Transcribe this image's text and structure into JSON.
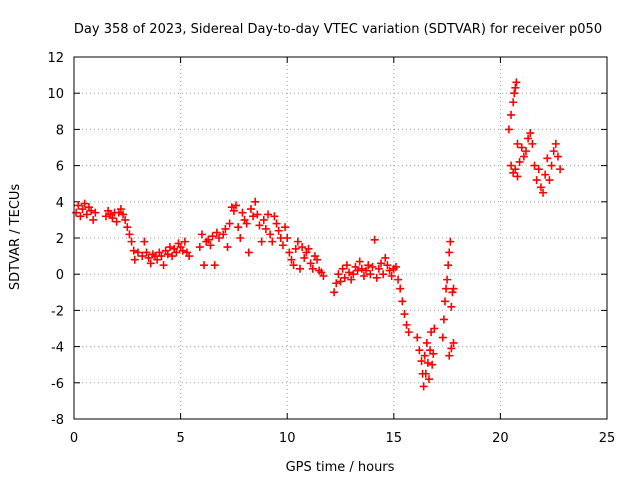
{
  "chart_data": {
    "type": "scatter",
    "title": "Day 358 of 2023, Sidereal Day-to-day VTEC variation (SDTVAR) for receiver p050",
    "xlabel": "GPS time / hours",
    "ylabel": "SDTVAR / TECUs",
    "xlim": [
      0,
      25
    ],
    "ylim": [
      -8,
      12
    ],
    "xticks": [
      0,
      5,
      10,
      15,
      20,
      25
    ],
    "yticks": [
      -8,
      -6,
      -4,
      -2,
      0,
      2,
      4,
      6,
      8,
      10,
      12
    ],
    "grid": true,
    "marker": "+",
    "series": [
      {
        "name": "SDTVAR",
        "color": "#ff0000",
        "points": [
          [
            0.1,
            3.4
          ],
          [
            0.2,
            3.8
          ],
          [
            0.3,
            3.2
          ],
          [
            0.4,
            3.6
          ],
          [
            0.5,
            3.9
          ],
          [
            0.6,
            3.3
          ],
          [
            0.7,
            3.7
          ],
          [
            0.8,
            3.5
          ],
          [
            0.9,
            3.0
          ],
          [
            1.0,
            3.4
          ],
          [
            1.5,
            3.2
          ],
          [
            1.6,
            3.5
          ],
          [
            1.7,
            3.3
          ],
          [
            1.8,
            3.1
          ],
          [
            1.9,
            3.4
          ],
          [
            2.0,
            2.9
          ],
          [
            2.1,
            3.4
          ],
          [
            2.2,
            3.6
          ],
          [
            2.3,
            3.3
          ],
          [
            2.4,
            3.0
          ],
          [
            2.5,
            2.6
          ],
          [
            2.6,
            2.2
          ],
          [
            2.7,
            1.8
          ],
          [
            2.8,
            1.3
          ],
          [
            2.85,
            0.8
          ],
          [
            3.0,
            1.2
          ],
          [
            3.2,
            1.0
          ],
          [
            3.3,
            1.8
          ],
          [
            3.4,
            1.2
          ],
          [
            3.5,
            0.9
          ],
          [
            3.6,
            0.6
          ],
          [
            3.7,
            1.1
          ],
          [
            3.8,
            1.0
          ],
          [
            3.9,
            0.8
          ],
          [
            4.0,
            1.2
          ],
          [
            4.1,
            1.0
          ],
          [
            4.2,
            0.5
          ],
          [
            4.3,
            1.3
          ],
          [
            4.4,
            1.1
          ],
          [
            4.5,
            1.5
          ],
          [
            4.6,
            1.0
          ],
          [
            4.7,
            1.4
          ],
          [
            4.8,
            1.2
          ],
          [
            4.9,
            1.7
          ],
          [
            5.0,
            1.5
          ],
          [
            5.1,
            1.3
          ],
          [
            5.2,
            1.8
          ],
          [
            5.3,
            1.2
          ],
          [
            5.4,
            1.0
          ],
          [
            5.9,
            1.5
          ],
          [
            6.0,
            2.2
          ],
          [
            6.1,
            0.5
          ],
          [
            6.2,
            1.8
          ],
          [
            6.3,
            1.9
          ],
          [
            6.4,
            1.6
          ],
          [
            6.5,
            2.1
          ],
          [
            6.6,
            0.5
          ],
          [
            6.7,
            2.3
          ],
          [
            6.8,
            2.0
          ],
          [
            7.0,
            2.2
          ],
          [
            7.1,
            2.5
          ],
          [
            7.2,
            1.5
          ],
          [
            7.3,
            2.8
          ],
          [
            7.4,
            3.7
          ],
          [
            7.5,
            3.5
          ],
          [
            7.6,
            3.8
          ],
          [
            7.7,
            2.6
          ],
          [
            7.8,
            2.0
          ],
          [
            7.9,
            3.4
          ],
          [
            8.0,
            3.0
          ],
          [
            8.1,
            2.8
          ],
          [
            8.2,
            1.2
          ],
          [
            8.3,
            3.6
          ],
          [
            8.4,
            3.2
          ],
          [
            8.5,
            4.0
          ],
          [
            8.6,
            3.3
          ],
          [
            8.7,
            2.7
          ],
          [
            8.8,
            1.8
          ],
          [
            8.9,
            3.0
          ],
          [
            9.0,
            2.5
          ],
          [
            9.1,
            3.3
          ],
          [
            9.2,
            2.2
          ],
          [
            9.3,
            1.8
          ],
          [
            9.4,
            3.2
          ],
          [
            9.5,
            2.8
          ],
          [
            9.6,
            2.4
          ],
          [
            9.7,
            2.0
          ],
          [
            9.8,
            1.6
          ],
          [
            9.9,
            2.6
          ],
          [
            10.0,
            2.0
          ],
          [
            10.1,
            1.2
          ],
          [
            10.2,
            0.8
          ],
          [
            10.3,
            0.5
          ],
          [
            10.4,
            1.4
          ],
          [
            10.5,
            1.8
          ],
          [
            10.6,
            0.3
          ],
          [
            10.7,
            1.5
          ],
          [
            10.8,
            0.9
          ],
          [
            10.9,
            1.2
          ],
          [
            11.0,
            1.4
          ],
          [
            11.1,
            0.6
          ],
          [
            11.2,
            0.3
          ],
          [
            11.3,
            1.0
          ],
          [
            11.4,
            0.8
          ],
          [
            11.5,
            0.2
          ],
          [
            11.6,
            0.1
          ],
          [
            11.7,
            -0.1
          ],
          [
            12.2,
            -1.0
          ],
          [
            12.3,
            -0.5
          ],
          [
            12.4,
            0.0
          ],
          [
            12.5,
            -0.4
          ],
          [
            12.6,
            0.3
          ],
          [
            12.7,
            -0.2
          ],
          [
            12.8,
            0.5
          ],
          [
            12.9,
            0.1
          ],
          [
            13.0,
            -0.3
          ],
          [
            13.1,
            0.0
          ],
          [
            13.2,
            0.4
          ],
          [
            13.3,
            0.2
          ],
          [
            13.4,
            0.7
          ],
          [
            13.5,
            0.3
          ],
          [
            13.6,
            -0.1
          ],
          [
            13.7,
            0.2
          ],
          [
            13.8,
            0.5
          ],
          [
            13.9,
            0.0
          ],
          [
            14.0,
            0.4
          ],
          [
            14.1,
            1.9
          ],
          [
            14.2,
            -0.2
          ],
          [
            14.3,
            0.3
          ],
          [
            14.4,
            0.6
          ],
          [
            14.5,
            0.0
          ],
          [
            14.6,
            0.9
          ],
          [
            14.7,
            0.5
          ],
          [
            14.8,
            0.2
          ],
          [
            14.9,
            -0.1
          ],
          [
            15.0,
            0.3
          ],
          [
            15.1,
            0.4
          ],
          [
            15.2,
            -0.3
          ],
          [
            15.3,
            -0.8
          ],
          [
            15.4,
            -1.5
          ],
          [
            15.5,
            -2.2
          ],
          [
            15.6,
            -2.8
          ],
          [
            15.7,
            -3.2
          ],
          [
            16.1,
            -3.5
          ],
          [
            16.2,
            -4.2
          ],
          [
            16.3,
            -4.8
          ],
          [
            16.35,
            -5.5
          ],
          [
            16.4,
            -6.2
          ],
          [
            16.45,
            -4.5
          ],
          [
            16.5,
            -5.5
          ],
          [
            16.55,
            -3.8
          ],
          [
            16.6,
            -4.9
          ],
          [
            16.65,
            -5.8
          ],
          [
            16.7,
            -4.2
          ],
          [
            16.75,
            -3.2
          ],
          [
            16.8,
            -5.0
          ],
          [
            16.85,
            -4.4
          ],
          [
            16.9,
            -3.0
          ],
          [
            17.3,
            -3.5
          ],
          [
            17.35,
            -2.5
          ],
          [
            17.4,
            -1.5
          ],
          [
            17.45,
            -0.8
          ],
          [
            17.5,
            -0.3
          ],
          [
            17.55,
            0.5
          ],
          [
            17.6,
            1.2
          ],
          [
            17.65,
            1.8
          ],
          [
            17.7,
            -1.8
          ],
          [
            17.75,
            -1.0
          ],
          [
            17.8,
            -0.8
          ],
          [
            17.6,
            -4.5
          ],
          [
            17.7,
            -4.1
          ],
          [
            17.8,
            -3.8
          ],
          [
            20.4,
            8.0
          ],
          [
            20.5,
            8.8
          ],
          [
            20.6,
            9.5
          ],
          [
            20.65,
            10.0
          ],
          [
            20.7,
            10.3
          ],
          [
            20.75,
            10.6
          ],
          [
            20.8,
            7.2
          ],
          [
            20.5,
            6.0
          ],
          [
            20.6,
            5.6
          ],
          [
            20.7,
            5.8
          ],
          [
            20.8,
            5.4
          ],
          [
            20.9,
            6.2
          ],
          [
            21.0,
            7.0
          ],
          [
            21.1,
            6.5
          ],
          [
            21.2,
            6.8
          ],
          [
            21.3,
            7.5
          ],
          [
            21.4,
            7.8
          ],
          [
            21.5,
            7.2
          ],
          [
            21.6,
            6.0
          ],
          [
            21.7,
            5.2
          ],
          [
            21.8,
            5.8
          ],
          [
            21.9,
            4.8
          ],
          [
            22.0,
            4.5
          ],
          [
            22.1,
            5.5
          ],
          [
            22.2,
            6.4
          ],
          [
            22.3,
            5.2
          ],
          [
            22.4,
            6.0
          ],
          [
            22.5,
            6.8
          ],
          [
            22.6,
            7.2
          ],
          [
            22.7,
            6.5
          ],
          [
            22.8,
            5.8
          ]
        ]
      }
    ]
  }
}
